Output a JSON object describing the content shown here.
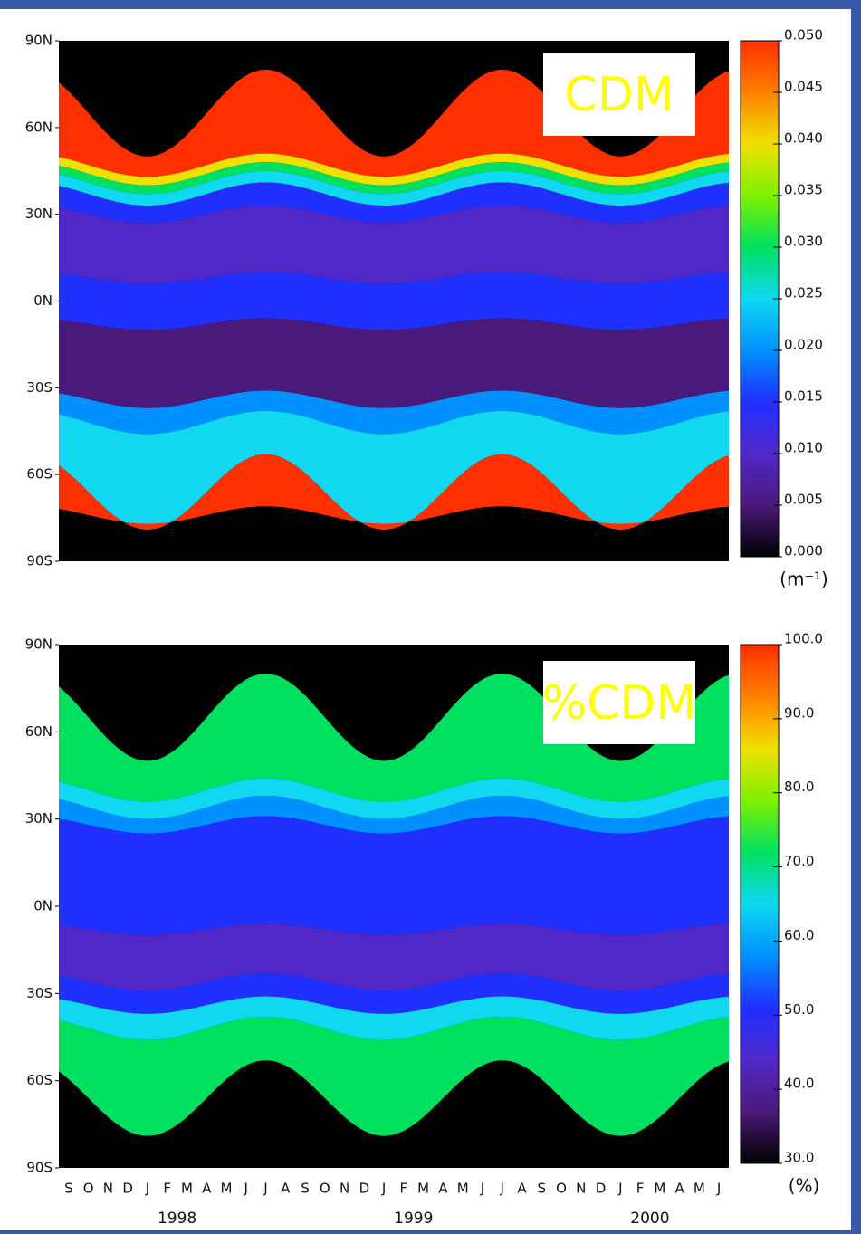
{
  "chart_data": [
    {
      "type": "heatmap",
      "label": "CDM",
      "ylim": [
        -90,
        90
      ],
      "yticks": [
        {
          "value": 90,
          "label": "90N"
        },
        {
          "value": 60,
          "label": "60N"
        },
        {
          "value": 30,
          "label": "30N"
        },
        {
          "value": 0,
          "label": "0N"
        },
        {
          "value": -30,
          "label": "30S"
        },
        {
          "value": -60,
          "label": "60S"
        },
        {
          "value": -90,
          "label": "90S"
        }
      ],
      "colorbar": {
        "lim": [
          0,
          0.05
        ],
        "unit": "(m⁻¹)",
        "ticks": [
          {
            "value": 0,
            "label": "0.000"
          },
          {
            "value": 0.005,
            "label": "0.005"
          },
          {
            "value": 0.01,
            "label": "0.010"
          },
          {
            "value": 0.015,
            "label": "0.015"
          },
          {
            "value": 0.02,
            "label": "0.020"
          },
          {
            "value": 0.025,
            "label": "0.025"
          },
          {
            "value": 0.03,
            "label": "0.030"
          },
          {
            "value": 0.035,
            "label": "0.035"
          },
          {
            "value": 0.04,
            "label": "0.040"
          },
          {
            "value": 0.045,
            "label": "0.045"
          },
          {
            "value": 0.05,
            "label": "0.050"
          }
        ]
      },
      "colors": [
        "#000000",
        "#4a1a7a",
        "#5028c8",
        "#2030ff",
        "#0090ff",
        "#10d8f0",
        "#00e060",
        "#80f000",
        "#f0e000",
        "#ff8000",
        "#ff3000"
      ]
    },
    {
      "type": "heatmap",
      "label": "%CDM",
      "ylim": [
        -90,
        90
      ],
      "yticks": [
        {
          "value": 90,
          "label": "90N"
        },
        {
          "value": 60,
          "label": "60N"
        },
        {
          "value": 30,
          "label": "30N"
        },
        {
          "value": 0,
          "label": "0N"
        },
        {
          "value": -30,
          "label": "30S"
        },
        {
          "value": -60,
          "label": "60S"
        },
        {
          "value": -90,
          "label": "90S"
        }
      ],
      "colorbar": {
        "lim": [
          30,
          100
        ],
        "unit": "(%)",
        "ticks": [
          {
            "value": 30,
            "label": "30.0"
          },
          {
            "value": 40,
            "label": "40.0"
          },
          {
            "value": 50,
            "label": "50.0"
          },
          {
            "value": 60,
            "label": "60.0"
          },
          {
            "value": 70,
            "label": "70.0"
          },
          {
            "value": 80,
            "label": "80.0"
          },
          {
            "value": 90,
            "label": "90.0"
          },
          {
            "value": 100,
            "label": "100.0"
          }
        ]
      },
      "colors": [
        "#000000",
        "#4a1a7a",
        "#5028c8",
        "#2030ff",
        "#0090ff",
        "#10d8f0",
        "#00e060",
        "#80f000",
        "#f0e000",
        "#ff8000",
        "#ff3000"
      ],
      "categories": [
        "S",
        "O",
        "N",
        "D",
        "J",
        "F",
        "M",
        "A",
        "M",
        "J",
        "J",
        "A",
        "S",
        "O",
        "N",
        "D",
        "J",
        "F",
        "M",
        "A",
        "M",
        "J",
        "J",
        "A",
        "S",
        "O",
        "N",
        "D",
        "J",
        "F",
        "M",
        "A",
        "M",
        "J"
      ],
      "years": [
        "1998",
        "1999",
        "2000"
      ]
    }
  ]
}
